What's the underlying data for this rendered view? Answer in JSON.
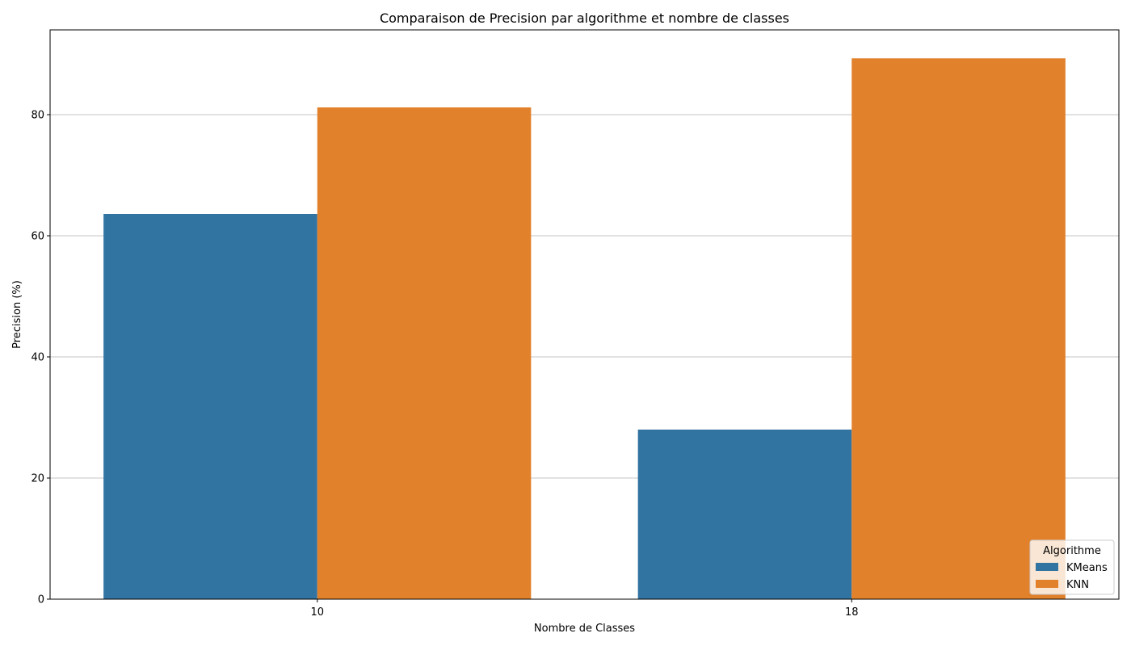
{
  "chart_data": {
    "type": "bar",
    "title": "Comparaison de Precision par algorithme et nombre de classes",
    "xlabel": "Nombre de Classes",
    "ylabel": "Precision (%)",
    "categories": [
      "10",
      "18"
    ],
    "series": [
      {
        "name": "KMeans",
        "values": [
          63.6,
          28.0
        ],
        "color": "#3274a1"
      },
      {
        "name": "KNN",
        "values": [
          81.2,
          89.3
        ],
        "color": "#e1812c"
      }
    ],
    "ylim": [
      0,
      94
    ],
    "yticks": [
      0,
      20,
      40,
      60,
      80
    ],
    "grid": "y",
    "legend": {
      "title": "Algorithme",
      "placement": "lower right"
    }
  }
}
